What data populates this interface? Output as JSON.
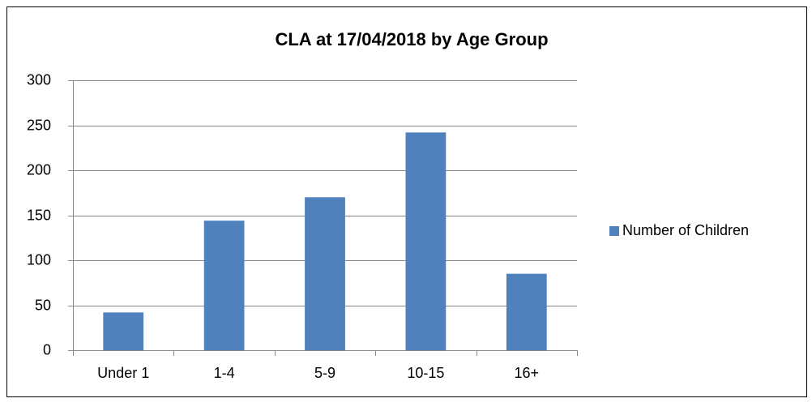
{
  "chart_data": {
    "type": "bar",
    "title": "CLA at 17/04/2018 by Age Group",
    "categories": [
      "Under 1",
      "1-4",
      "5-9",
      "10-15",
      "16+"
    ],
    "series": [
      {
        "name": "Number of Children",
        "color": "#4f81bd",
        "values": [
          42,
          144,
          170,
          242,
          85
        ]
      }
    ],
    "ylim": [
      0,
      300
    ],
    "yticks": [
      0,
      50,
      100,
      150,
      200,
      250,
      300
    ],
    "grid": true,
    "legend": "right"
  }
}
